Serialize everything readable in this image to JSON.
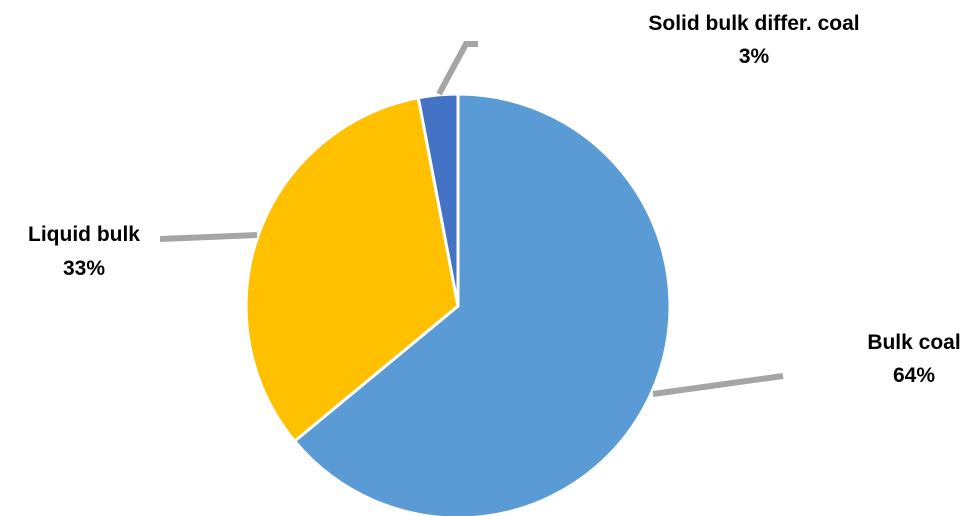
{
  "chart_data": {
    "type": "pie",
    "categories": [
      "Bulk coal",
      "Liquid bulk",
      "Solid bulk differ. coal"
    ],
    "values": [
      64,
      33,
      3
    ],
    "value_labels": [
      "64%",
      "33%",
      "3%"
    ],
    "colors": [
      "#5b9bd5",
      "#ffc000",
      "#4472c4"
    ],
    "leader_color": "#a5a5a5",
    "start_angle_deg": 0,
    "direction": "clockwise",
    "legend": "none",
    "title": ""
  }
}
